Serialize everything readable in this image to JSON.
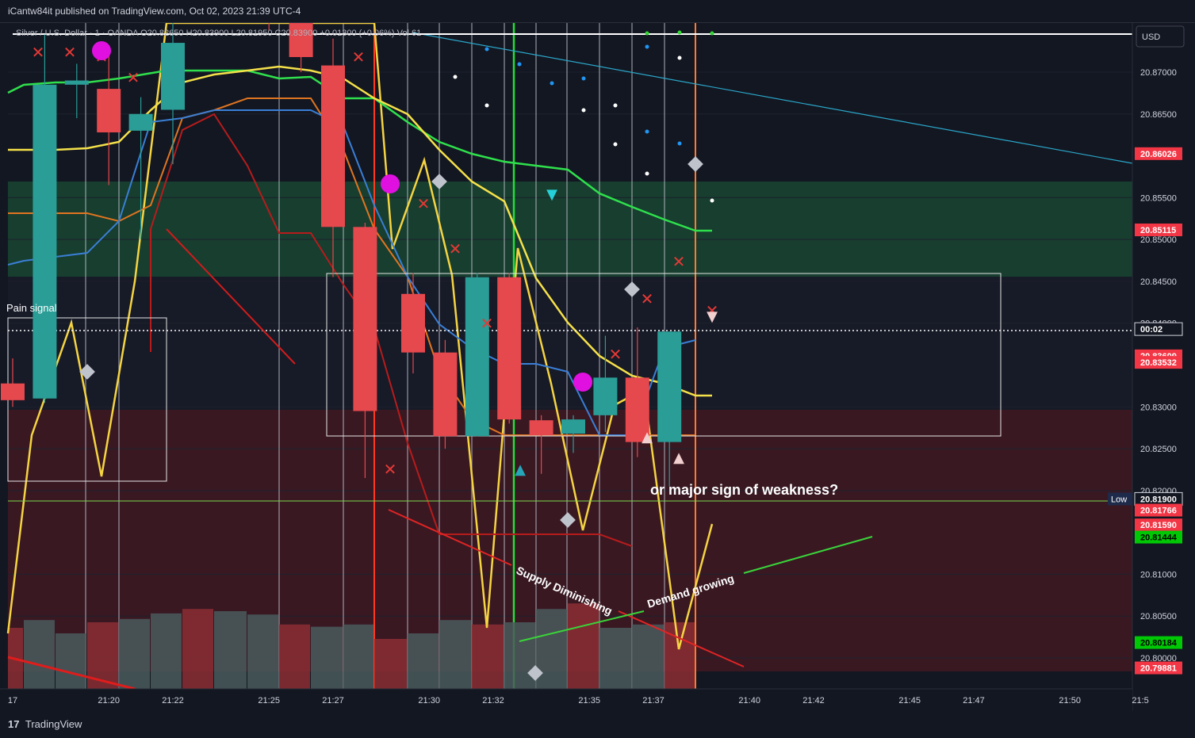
{
  "header": {
    "publisher": "iCantw84it published on TradingView.com, Oct 02, 2023 21:39 UTC-4",
    "symbol_line": "Silver / U.S. Dollar · 1 · OANDA  O20.82650  H20.83900  L20.81950  C20.83900  +0.01300 (+0.06%)  Vol 61"
  },
  "footer": {
    "brand_mark": "17",
    "brand": "TradingView"
  },
  "currency_label": "USD",
  "annotations": {
    "pain_signal": "Pain signal",
    "weakness": "or major sign of weakness?",
    "supply": "Supply Diminishing",
    "demand": "Demand growing"
  },
  "price_tags": [
    {
      "label": "20.86026",
      "value": 20.86026,
      "color": "#f23645"
    },
    {
      "label": "20.85115",
      "value": 20.85115,
      "color": "#f23645"
    },
    {
      "label": "00:02",
      "value": 20.8393,
      "color": "#131722"
    },
    {
      "label": "20.83609",
      "value": 20.8361,
      "color": "#f23645"
    },
    {
      "label": "20.83532",
      "value": 20.83532,
      "color": "#f23645"
    },
    {
      "label": "20.81900",
      "value": 20.819,
      "color": "#131722"
    },
    {
      "label": "20.81766",
      "value": 20.81766,
      "color": "#f23645"
    },
    {
      "label": "20.81590",
      "value": 20.8159,
      "color": "#f23645"
    },
    {
      "label": "20.81444",
      "value": 20.81444,
      "color": "#00c805"
    },
    {
      "label": "20.80184",
      "value": 20.80184,
      "color": "#00c805"
    },
    {
      "label": "20.79881",
      "value": 20.79881,
      "color": "#f23645"
    }
  ],
  "low_label": "Low",
  "chart_data": {
    "type": "candlestick",
    "title": "Silver / U.S. Dollar · 1 · OANDA",
    "y_axis": {
      "ticks": [
        "20.87000",
        "20.86500",
        "20.85500",
        "20.85000",
        "20.84500",
        "20.84000",
        "20.83000",
        "20.82500",
        "20.82000",
        "20.81000",
        "20.80500",
        "20.80000"
      ],
      "tick_values": [
        20.87,
        20.865,
        20.855,
        20.85,
        20.845,
        20.84,
        20.83,
        20.825,
        20.82,
        20.81,
        20.805,
        20.8
      ],
      "range": [
        20.7975,
        20.8777
      ]
    },
    "x_axis": {
      "ticks": [
        "17",
        "21:20",
        "21:22",
        "21:25",
        "21:27",
        "21:30",
        "21:32",
        "21:35",
        "21:37",
        "21:40",
        "21:42",
        "21:45",
        "21:47",
        "21:50",
        "21:5"
      ],
      "tick_minutes": [
        17,
        20,
        22,
        25,
        27,
        30,
        32,
        35,
        37,
        40,
        42,
        45,
        47,
        50,
        52.2
      ]
    },
    "candles": [
      {
        "t": 17.0,
        "o": 20.8328,
        "h": 20.8358,
        "l": 20.83,
        "c": 20.8308
      },
      {
        "t": 18.0,
        "o": 20.831,
        "h": 20.8745,
        "l": 20.8305,
        "c": 20.8685
      },
      {
        "t": 19.0,
        "o": 20.8685,
        "h": 20.871,
        "l": 20.8645,
        "c": 20.869
      },
      {
        "t": 20.0,
        "o": 20.868,
        "h": 20.8725,
        "l": 20.8565,
        "c": 20.8628
      },
      {
        "t": 21.0,
        "o": 20.863,
        "h": 20.867,
        "l": 20.85,
        "c": 20.865
      },
      {
        "t": 22.0,
        "o": 20.8655,
        "h": 20.876,
        "l": 20.859,
        "c": 20.8735
      },
      {
        "t": 25.0,
        "o": 20.8795,
        "h": 20.881,
        "l": 20.875,
        "c": 20.876
      },
      {
        "t": 26.0,
        "o": 20.876,
        "h": 20.8765,
        "l": 20.87,
        "c": 20.8718
      },
      {
        "t": 27.0,
        "o": 20.8708,
        "h": 20.874,
        "l": 20.8455,
        "c": 20.8515
      },
      {
        "t": 28.0,
        "o": 20.8515,
        "h": 20.852,
        "l": 20.8215,
        "c": 20.8295
      },
      {
        "t": 29.5,
        "o": 20.8435,
        "h": 20.846,
        "l": 20.834,
        "c": 20.8365
      },
      {
        "t": 30.5,
        "o": 20.8365,
        "h": 20.838,
        "l": 20.825,
        "c": 20.8265
      },
      {
        "t": 31.5,
        "o": 20.8265,
        "h": 20.846,
        "l": 20.8265,
        "c": 20.8455
      },
      {
        "t": 32.5,
        "o": 20.8455,
        "h": 20.846,
        "l": 20.828,
        "c": 20.8285
      },
      {
        "t": 33.5,
        "o": 20.8284,
        "h": 20.829,
        "l": 20.822,
        "c": 20.8266
      },
      {
        "t": 34.5,
        "o": 20.8268,
        "h": 20.829,
        "l": 20.8245,
        "c": 20.8285
      },
      {
        "t": 35.5,
        "o": 20.829,
        "h": 20.8385,
        "l": 20.827,
        "c": 20.8335
      },
      {
        "t": 36.5,
        "o": 20.8335,
        "h": 20.8395,
        "l": 20.824,
        "c": 20.8258
      },
      {
        "t": 37.5,
        "o": 20.8258,
        "h": 20.839,
        "l": 20.8205,
        "c": 20.839
      }
    ],
    "volume": [
      55,
      62,
      50,
      60,
      63,
      68,
      72,
      70,
      67,
      58,
      56,
      58,
      45,
      50,
      62,
      58,
      60,
      72,
      77,
      55,
      58,
      60
    ]
  }
}
